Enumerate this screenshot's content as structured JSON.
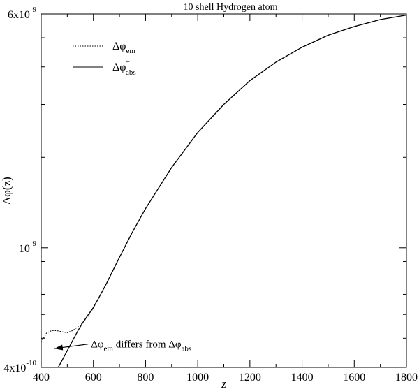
{
  "chart_data": {
    "type": "line",
    "title": "10 shell Hydrogen atom",
    "xlabel": "z",
    "ylabel": "Δφ(z)",
    "xlim": [
      400,
      1800
    ],
    "ylim": [
      4e-10,
      6e-09
    ],
    "yscale": "log",
    "grid": false,
    "legend_placement": "top-left",
    "x_ticks": [
      {
        "value": 400,
        "label": "400"
      },
      {
        "value": 600,
        "label": "600"
      },
      {
        "value": 800,
        "label": "800"
      },
      {
        "value": 1000,
        "label": "1000"
      },
      {
        "value": 1200,
        "label": "1200"
      },
      {
        "value": 1400,
        "label": "1400"
      },
      {
        "value": 1600,
        "label": "1600"
      },
      {
        "value": 1800,
        "label": "1800"
      }
    ],
    "y_ticks": [
      {
        "value": 4e-10,
        "label_base": "4x10",
        "label_exp": "-10"
      },
      {
        "value": 1e-09,
        "label_base": "10",
        "label_exp": "-9"
      },
      {
        "value": 6e-09,
        "label_base": "6x10",
        "label_exp": "-9"
      }
    ],
    "legend": [
      {
        "symbol": "Δφ",
        "sub": "em",
        "sup": "",
        "style": "dotted"
      },
      {
        "symbol": "Δφ",
        "sub": "abs",
        "sup": "*",
        "style": "solid"
      }
    ],
    "annotation": {
      "parts": [
        {
          "text": "Δφ"
        },
        {
          "text": "em",
          "sub": true
        },
        {
          "text": " differs from Δφ"
        },
        {
          "text": "abs",
          "sub": true
        }
      ],
      "arrow_from": [
        612,
        4.78e-10
      ],
      "arrow_to": [
        445,
        4.62e-10
      ]
    },
    "series": [
      {
        "name": "Δφem",
        "style": "dotted",
        "x": [
          400,
          420,
          440,
          460,
          480,
          500,
          520,
          540,
          560,
          580,
          600,
          620,
          650,
          700,
          750,
          800,
          900,
          1000,
          1100,
          1200,
          1300,
          1400,
          1500,
          1600,
          1700,
          1800
        ],
        "y": [
          4.85e-10,
          5.2e-10,
          5.3e-10,
          5.3e-10,
          5.25e-10,
          5.22e-10,
          5.3e-10,
          5.45e-10,
          5.65e-10,
          5.92e-10,
          6.3e-10,
          6.8e-10,
          7.6e-10,
          9.3e-10,
          1.13e-09,
          1.35e-09,
          1.85e-09,
          2.42e-09,
          3e-09,
          3.6e-09,
          4.15e-09,
          4.65e-09,
          5.1e-09,
          5.45e-09,
          5.75e-09,
          5.95e-09
        ]
      },
      {
        "name": "Δφ*abs",
        "style": "solid",
        "x": [
          465,
          480,
          500,
          520,
          540,
          560,
          580,
          600,
          620,
          650,
          700,
          750,
          800,
          900,
          1000,
          1100,
          1200,
          1300,
          1400,
          1500,
          1600,
          1700,
          1800
        ],
        "y": [
          4e-10,
          4.22e-10,
          4.55e-10,
          4.9e-10,
          5.28e-10,
          5.65e-10,
          5.98e-10,
          6.33e-10,
          6.8e-10,
          7.6e-10,
          9.3e-10,
          1.13e-09,
          1.35e-09,
          1.85e-09,
          2.42e-09,
          3e-09,
          3.6e-09,
          4.15e-09,
          4.65e-09,
          5.1e-09,
          5.45e-09,
          5.75e-09,
          5.95e-09
        ]
      }
    ]
  }
}
